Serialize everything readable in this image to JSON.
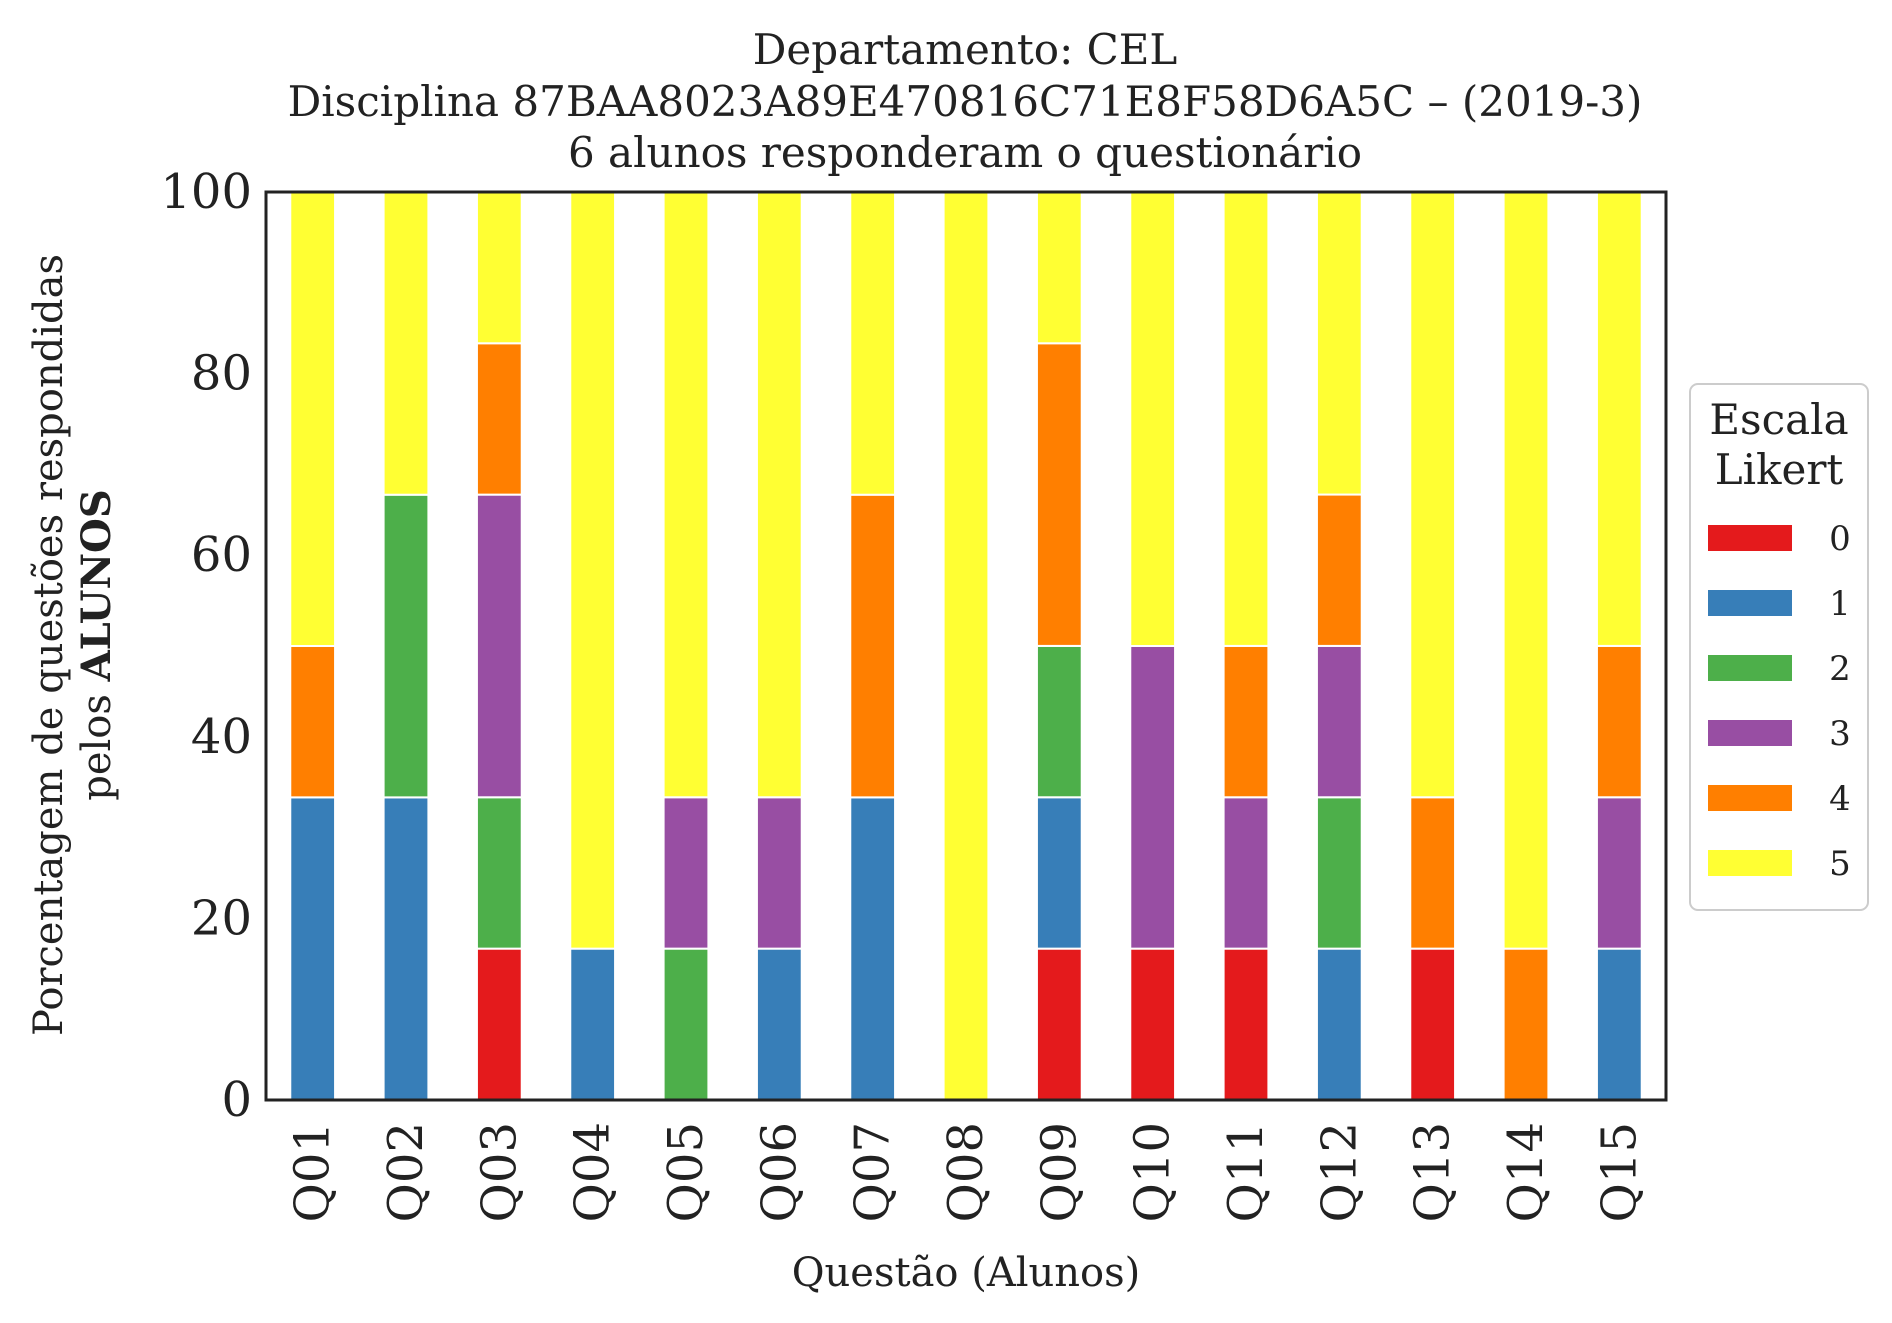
{
  "chart_data": {
    "type": "bar",
    "stacked": true,
    "title_lines": [
      "Departamento: CEL",
      "Disciplina 87BAA8023A89E470816C71E8F58D6A5C – (2019-3)",
      "6 alunos responderam o questionário"
    ],
    "xlabel": "Questão (Alunos)",
    "ylabel_line1": "Porcentagem de questões respondidas",
    "ylabel_line2_prefix": "pelos ",
    "ylabel_line2_bold": "ALUNOS",
    "ylim": [
      0,
      100
    ],
    "yticks": [
      0,
      20,
      40,
      60,
      80,
      100
    ],
    "grid": false,
    "legend": {
      "title_lines": [
        "Escala",
        "Likert"
      ],
      "placement": "right"
    },
    "categories": [
      "Q01",
      "Q02",
      "Q03",
      "Q04",
      "Q05",
      "Q06",
      "Q07",
      "Q08",
      "Q09",
      "Q10",
      "Q11",
      "Q12",
      "Q13",
      "Q14",
      "Q15"
    ],
    "series": [
      {
        "name": "0",
        "color": "#e41a1c",
        "values": [
          0,
          0,
          16.67,
          0,
          0,
          0,
          0,
          0,
          16.67,
          16.67,
          16.67,
          0,
          16.67,
          0,
          0
        ]
      },
      {
        "name": "1",
        "color": "#377eb8",
        "values": [
          33.33,
          33.33,
          0,
          16.67,
          0,
          16.67,
          33.33,
          0,
          16.67,
          0,
          0,
          16.67,
          0,
          0,
          16.67
        ]
      },
      {
        "name": "2",
        "color": "#4daf4a",
        "values": [
          0,
          33.33,
          16.67,
          0,
          16.67,
          0,
          0,
          0,
          16.67,
          0,
          0,
          16.67,
          0,
          0,
          0
        ]
      },
      {
        "name": "3",
        "color": "#984ea3",
        "values": [
          0,
          0,
          33.33,
          0,
          16.67,
          16.67,
          0,
          0,
          0,
          33.33,
          16.67,
          16.67,
          0,
          0,
          16.67
        ]
      },
      {
        "name": "4",
        "color": "#ff7f00",
        "values": [
          16.67,
          0,
          16.67,
          0,
          0,
          0,
          33.33,
          0,
          33.33,
          0,
          16.67,
          16.67,
          16.67,
          16.67,
          16.67
        ]
      },
      {
        "name": "5",
        "color": "#ffff33",
        "values": [
          50,
          33.33,
          16.67,
          83.33,
          66.67,
          66.67,
          33.33,
          100,
          16.67,
          50,
          50,
          33.33,
          66.67,
          83.33,
          50
        ]
      }
    ]
  }
}
